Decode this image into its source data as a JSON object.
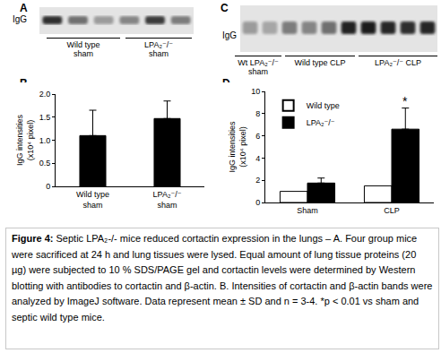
{
  "panels": {
    "A": {
      "letter": "A",
      "band_label": "IgG",
      "groups": [
        [
          "Wild type",
          "sham"
        ],
        [
          "LPA₂⁻/⁻",
          "sham"
        ]
      ]
    },
    "B": {
      "letter": "B"
    },
    "C": {
      "letter": "C",
      "band_label": "IgG",
      "groups": [
        [
          "Wt LPA₂⁻/⁻",
          "sham"
        ],
        [
          "Wild type CLP"
        ],
        [
          "LPA₂⁻/⁻ CLP"
        ]
      ]
    },
    "D": {
      "letter": "D"
    }
  },
  "chart_data": [
    {
      "type": "bar",
      "y_label": "IgG intensities (x10⁴ pixel)",
      "categories": [
        "Wild type sham",
        "LPA₂⁻/⁻ sham"
      ],
      "values": [
        1.1,
        1.47
      ],
      "errors": [
        0.55,
        0.38
      ],
      "color": "#000000",
      "ylim": [
        0,
        2
      ],
      "yticks": [
        0,
        0.5,
        {
          "value": 1,
          "label": "1.0"
        },
        1.5,
        {
          "value": 2,
          "label": "2.0"
        }
      ],
      "grid": false
    },
    {
      "type": "bar",
      "y_label": "IgG intensities (x10⁴ pixel)",
      "categories": [
        "Sham",
        "CLP"
      ],
      "series": [
        {
          "name": "Wild type",
          "color": "#ffffff",
          "values": [
            1.0,
            1.5
          ]
        },
        {
          "name": "LPA₂⁻/⁻",
          "color": "#000000",
          "values": [
            1.75,
            6.6
          ],
          "errors": [
            0.45,
            1.9
          ]
        }
      ],
      "annotations": [
        {
          "text": "*",
          "category": "CLP",
          "series": "LPA₂⁻/⁻"
        }
      ],
      "ylim": [
        0,
        10
      ],
      "yticks": [
        0,
        2,
        4,
        6,
        8,
        10
      ],
      "legend": "upper left",
      "grid": false
    }
  ],
  "caption": {
    "label": "Figure 4:",
    "text": "Septic LPA₂-/- mice reduced cortactin expression in the lungs – A. Four group mice were sacrificed at 24 h and lung tissues were lysed. Equal amount of lung tissue proteins (20 µg) were subjected to 10 % SDS/PAGE gel and cortactin levels were determined by Western blotting with antibodies to cortactin and β-actin. B. Intensities of cortactin and β-actin bands were analyzed by ImageJ software. Data represent mean ± SD and n = 3-4. *p < 0.01 vs sham and septic wild type mice."
  }
}
